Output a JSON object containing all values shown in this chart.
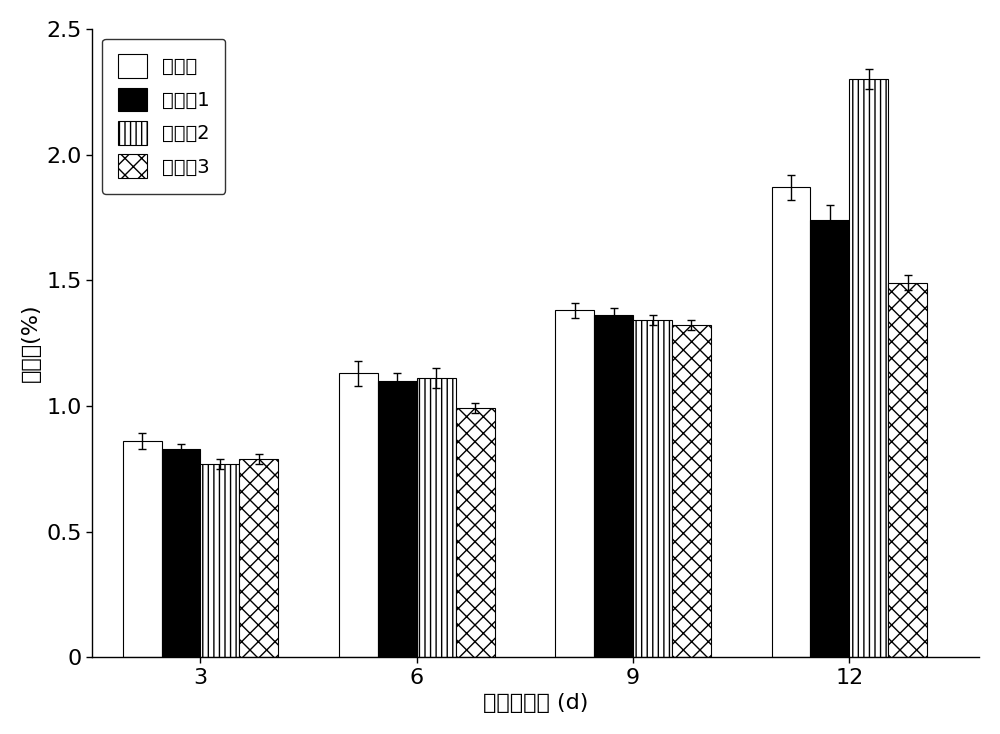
{
  "title": "",
  "xlabel": "处理后时间 (d)",
  "ylabel": "失重率(%)",
  "days": [
    3,
    6,
    9,
    12
  ],
  "series": {
    "对比例": {
      "values": [
        0.86,
        1.13,
        1.38,
        1.87
      ],
      "errors": [
        0.03,
        0.05,
        0.03,
        0.05
      ]
    },
    "实施例1": {
      "values": [
        0.83,
        1.1,
        1.36,
        1.74
      ],
      "errors": [
        0.02,
        0.03,
        0.03,
        0.06
      ]
    },
    "实施例2": {
      "values": [
        0.77,
        1.11,
        1.34,
        2.3
      ],
      "errors": [
        0.02,
        0.04,
        0.02,
        0.04
      ]
    },
    "实施例3": {
      "values": [
        0.79,
        0.99,
        1.32,
        1.49
      ],
      "errors": [
        0.02,
        0.02,
        0.02,
        0.03
      ]
    }
  },
  "ylim": [
    0,
    2.5
  ],
  "yticks": [
    0,
    0.5,
    1.0,
    1.5,
    2.0,
    2.5
  ],
  "bar_width": 0.18,
  "background_color": "#ffffff",
  "plot_bg_color": "#ffffff",
  "legend_labels": [
    "对比例",
    "实施例1",
    "实施例2",
    "实施例3"
  ],
  "xlabel_text": "处理后时间 (d)",
  "ylabel_text": "失重率(%)"
}
